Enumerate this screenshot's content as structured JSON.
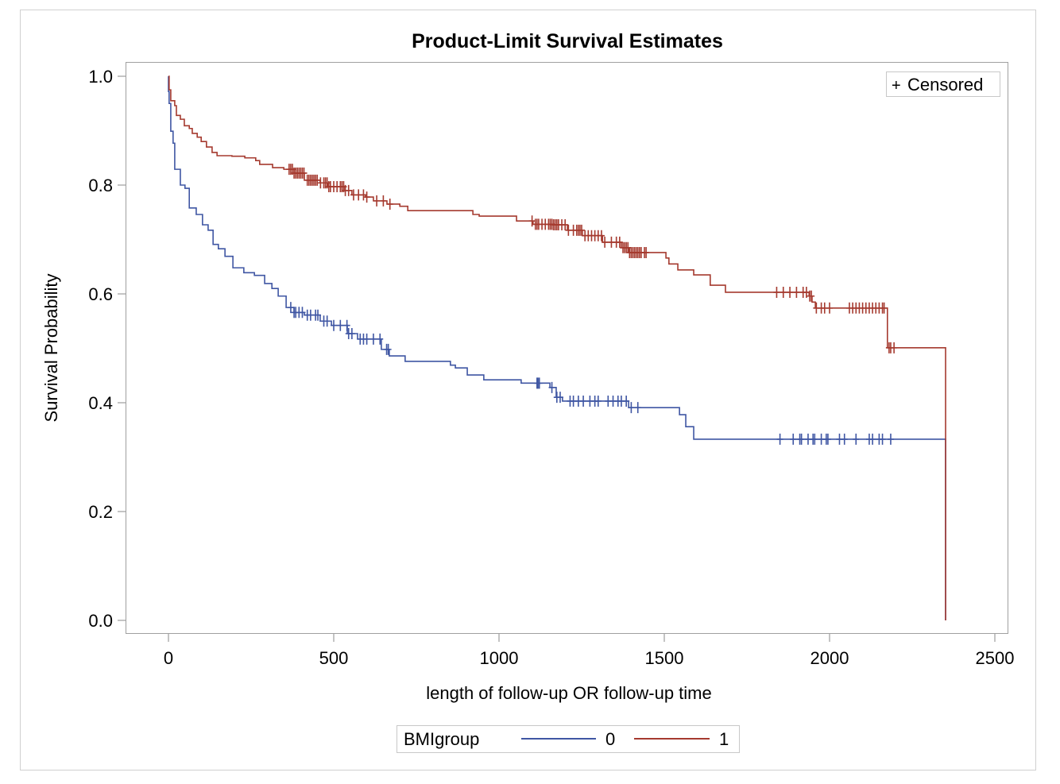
{
  "chart_data": {
    "type": "line",
    "subtype": "kaplan-meier step",
    "title": "Product-Limit Survival Estimates",
    "xlabel": "length of follow-up OR follow-up time",
    "ylabel": "Survival Probability",
    "xlim": [
      -130,
      2520
    ],
    "ylim": [
      -0.02,
      1.03
    ],
    "xticks": [
      0,
      500,
      1000,
      1500,
      2000,
      2500
    ],
    "yticks": [
      0.0,
      0.2,
      0.4,
      0.6,
      0.8,
      1.0
    ],
    "ytick_labels": [
      "0.0",
      "0.2",
      "0.4",
      "0.6",
      "0.8",
      "1.0"
    ],
    "grid": false,
    "censor_legend": {
      "symbol": "+",
      "label": "Censored",
      "placement": "top-right"
    },
    "legend": {
      "title": "BMIgroup",
      "placement": "bottom"
    },
    "series": [
      {
        "name": "0",
        "color": "#3f56a3",
        "steps": [
          [
            0,
            0.972
          ],
          [
            2,
            0.95
          ],
          [
            7,
            0.899
          ],
          [
            14,
            0.877
          ],
          [
            19,
            0.829
          ],
          [
            36,
            0.8
          ],
          [
            50,
            0.794
          ],
          [
            63,
            0.758
          ],
          [
            84,
            0.746
          ],
          [
            103,
            0.727
          ],
          [
            120,
            0.717
          ],
          [
            135,
            0.691
          ],
          [
            151,
            0.683
          ],
          [
            171,
            0.669
          ],
          [
            195,
            0.648
          ],
          [
            228,
            0.639
          ],
          [
            260,
            0.634
          ],
          [
            291,
            0.619
          ],
          [
            313,
            0.61
          ],
          [
            332,
            0.596
          ],
          [
            356,
            0.575
          ],
          [
            380,
            0.566
          ],
          [
            411,
            0.561
          ],
          [
            459,
            0.55
          ],
          [
            493,
            0.542
          ],
          [
            541,
            0.527
          ],
          [
            572,
            0.517
          ],
          [
            644,
            0.498
          ],
          [
            668,
            0.486
          ],
          [
            716,
            0.476
          ],
          [
            853,
            0.469
          ],
          [
            868,
            0.464
          ],
          [
            904,
            0.451
          ],
          [
            954,
            0.442
          ],
          [
            1067,
            0.436
          ],
          [
            1154,
            0.428
          ],
          [
            1173,
            0.41
          ],
          [
            1192,
            0.403
          ],
          [
            1392,
            0.391
          ],
          [
            1546,
            0.378
          ],
          [
            1565,
            0.356
          ],
          [
            1589,
            0.333
          ],
          [
            2351,
            0.0
          ]
        ],
        "censored": [
          370,
          380,
          385,
          395,
          405,
          420,
          430,
          445,
          452,
          470,
          480,
          500,
          520,
          540,
          545,
          555,
          580,
          590,
          600,
          620,
          640,
          660,
          665,
          1115,
          1118,
          1122,
          1160,
          1175,
          1185,
          1215,
          1225,
          1240,
          1255,
          1275,
          1290,
          1300,
          1330,
          1345,
          1360,
          1370,
          1385,
          1400,
          1420,
          1850,
          1890,
          1910,
          1915,
          1935,
          1950,
          1955,
          1975,
          1990,
          1995,
          2030,
          2045,
          2080,
          2120,
          2130,
          2150,
          2160,
          2185
        ]
      },
      {
        "name": "1",
        "color": "#a53a2f",
        "steps": [
          [
            0,
            1.0
          ],
          [
            2,
            0.975
          ],
          [
            7,
            0.955
          ],
          [
            19,
            0.946
          ],
          [
            24,
            0.928
          ],
          [
            36,
            0.921
          ],
          [
            48,
            0.909
          ],
          [
            63,
            0.904
          ],
          [
            72,
            0.895
          ],
          [
            87,
            0.888
          ],
          [
            99,
            0.88
          ],
          [
            115,
            0.87
          ],
          [
            132,
            0.86
          ],
          [
            147,
            0.854
          ],
          [
            192,
            0.853
          ],
          [
            231,
            0.85
          ],
          [
            264,
            0.845
          ],
          [
            276,
            0.838
          ],
          [
            315,
            0.832
          ],
          [
            349,
            0.829
          ],
          [
            380,
            0.822
          ],
          [
            411,
            0.809
          ],
          [
            459,
            0.804
          ],
          [
            483,
            0.797
          ],
          [
            531,
            0.79
          ],
          [
            555,
            0.782
          ],
          [
            596,
            0.778
          ],
          [
            620,
            0.771
          ],
          [
            661,
            0.765
          ],
          [
            700,
            0.761
          ],
          [
            724,
            0.753
          ],
          [
            921,
            0.746
          ],
          [
            940,
            0.743
          ],
          [
            1053,
            0.734
          ],
          [
            1103,
            0.728
          ],
          [
            1163,
            0.727
          ],
          [
            1207,
            0.717
          ],
          [
            1252,
            0.707
          ],
          [
            1313,
            0.695
          ],
          [
            1370,
            0.685
          ],
          [
            1392,
            0.676
          ],
          [
            1505,
            0.666
          ],
          [
            1514,
            0.655
          ],
          [
            1541,
            0.644
          ],
          [
            1589,
            0.635
          ],
          [
            1639,
            0.616
          ],
          [
            1685,
            0.603
          ],
          [
            1938,
            0.596
          ],
          [
            1947,
            0.585
          ],
          [
            1957,
            0.574
          ],
          [
            2175,
            0.501
          ],
          [
            2351,
            0.0
          ]
        ],
        "censored": [
          365,
          370,
          375,
          380,
          385,
          390,
          395,
          400,
          405,
          410,
          420,
          425,
          430,
          435,
          440,
          445,
          450,
          460,
          470,
          475,
          480,
          485,
          490,
          500,
          510,
          520,
          525,
          530,
          535,
          545,
          560,
          575,
          590,
          600,
          630,
          650,
          670,
          1100,
          1110,
          1115,
          1120,
          1130,
          1140,
          1150,
          1155,
          1160,
          1165,
          1170,
          1175,
          1180,
          1190,
          1200,
          1210,
          1225,
          1235,
          1240,
          1245,
          1250,
          1260,
          1270,
          1280,
          1290,
          1300,
          1310,
          1320,
          1340,
          1355,
          1365,
          1375,
          1380,
          1385,
          1390,
          1395,
          1400,
          1405,
          1410,
          1415,
          1420,
          1425,
          1430,
          1440,
          1445,
          1840,
          1860,
          1880,
          1900,
          1920,
          1930,
          1940,
          1945,
          1960,
          1975,
          1985,
          2000,
          2060,
          2070,
          2080,
          2090,
          2100,
          2110,
          2120,
          2130,
          2140,
          2150,
          2160,
          2165,
          2180,
          2185,
          2195
        ]
      }
    ]
  }
}
